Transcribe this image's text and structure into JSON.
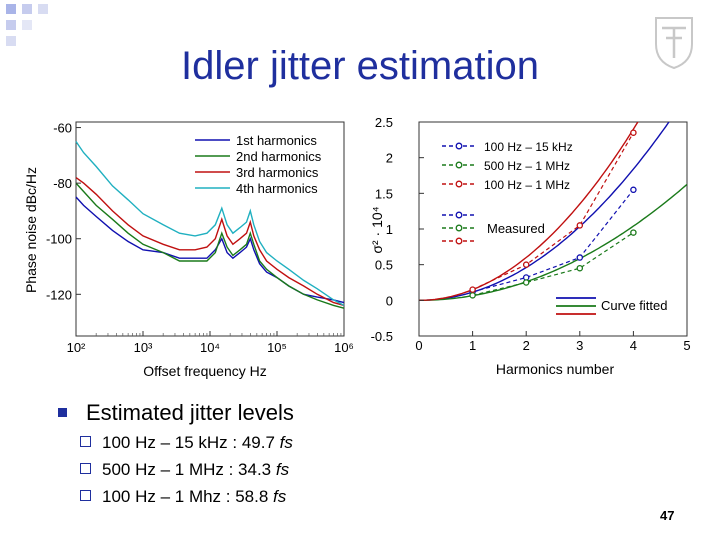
{
  "slide": {
    "title": "Idler jitter estimation",
    "page_number": "47",
    "accent_color": "#1f2f9e",
    "bullet": {
      "text": "Estimated jitter levels",
      "items": [
        {
          "label": "100 Hz – 15 kHz : 49.7 ",
          "value": "fs"
        },
        {
          "label": "500 Hz – 1 MHz  : 34.3 ",
          "value": "fs"
        },
        {
          "label": "100 Hz – 1 Mhz  : 58.8 ",
          "value": "fs"
        }
      ]
    }
  },
  "chart_data": [
    {
      "type": "line",
      "xlabel": "Offset frequency  Hz",
      "ylabel": "Phase noise  dBc/Hz",
      "x_scale": "log",
      "xlim": [
        100,
        1000000
      ],
      "ylim": [
        -135,
        -58
      ],
      "x_ticks": [
        "10²",
        "10³",
        "10⁴",
        "10⁵",
        "10⁶"
      ],
      "y_ticks": [
        "-60",
        "-80",
        "-100",
        "-120"
      ],
      "legend": [
        "1st harmonics",
        "2nd harmonics",
        "3rd harmonics",
        "4th harmonics"
      ],
      "legend_position": "top-right",
      "x": [
        100,
        130,
        200,
        350,
        600,
        1000,
        2000,
        3500,
        6000,
        9000,
        12000,
        15000,
        18000,
        22000,
        28000,
        35000,
        40000,
        45000,
        55000,
        70000,
        100000,
        150000,
        250000,
        400000,
        700000,
        1000000
      ],
      "series": [
        {
          "name": "1st harmonics",
          "color": "#1010b0",
          "values": [
            -85,
            -88,
            -92,
            -97,
            -101,
            -104,
            -105,
            -107,
            -107,
            -107,
            -104,
            -100,
            -105,
            -107,
            -105,
            -103,
            -100,
            -104,
            -109,
            -112,
            -114,
            -117,
            -120,
            -121,
            -122,
            -123
          ]
        },
        {
          "name": "2nd harmonics",
          "color": "#1a7a1a",
          "values": [
            -80,
            -83,
            -88,
            -93,
            -98,
            -102,
            -105,
            -108,
            -108,
            -108,
            -105,
            -98,
            -103,
            -106,
            -104,
            -102,
            -98,
            -102,
            -108,
            -111,
            -114,
            -117,
            -120,
            -122,
            -124,
            -125
          ]
        },
        {
          "name": "3rd harmonics",
          "color": "#c01010",
          "values": [
            -78,
            -80,
            -84,
            -90,
            -95,
            -99,
            -102,
            -104,
            -104,
            -103,
            -100,
            -93,
            -99,
            -102,
            -100,
            -98,
            -94,
            -99,
            -104,
            -108,
            -111,
            -114,
            -117,
            -120,
            -123,
            -124
          ]
        },
        {
          "name": "4th harmonics",
          "color": "#20b0c0",
          "values": [
            -65,
            -69,
            -74,
            -81,
            -86,
            -91,
            -95,
            -98,
            -99,
            -98,
            -95,
            -89,
            -95,
            -98,
            -96,
            -94,
            -90,
            -95,
            -101,
            -105,
            -108,
            -111,
            -115,
            -118,
            -122,
            -124
          ]
        }
      ]
    },
    {
      "type": "line",
      "xlabel": "Harmonics number",
      "ylabel": "σ² · 10⁴",
      "xlim": [
        0,
        5
      ],
      "ylim": [
        -0.5,
        2.5
      ],
      "x_ticks": [
        "0",
        "1",
        "2",
        "3",
        "4",
        "5"
      ],
      "y_ticks": [
        "-0.5",
        "0",
        "0.5",
        "1",
        "1.5",
        "2",
        "2.5"
      ],
      "legend": [
        "100 Hz – 15 kHz",
        "500 Hz – 1 MHz",
        "100 Hz – 1 MHz"
      ],
      "legend_measured_label": "Measured",
      "legend_fitted_label": "Curve fitted",
      "x": [
        1,
        2,
        3,
        4
      ],
      "measured": [
        {
          "name": "100 Hz – 15 kHz",
          "color": "#1010b0",
          "values": [
            0.12,
            0.32,
            0.6,
            1.55
          ]
        },
        {
          "name": "500 Hz – 1 MHz",
          "color": "#1a7a1a",
          "values": [
            0.07,
            0.25,
            0.45,
            0.95
          ]
        },
        {
          "name": "100 Hz – 1 MHz",
          "color": "#c01010",
          "values": [
            0.15,
            0.5,
            1.05,
            2.35
          ]
        }
      ],
      "fitted": [
        {
          "color": "#1010b0",
          "coef": 0.115,
          "power": 2
        },
        {
          "color": "#1a7a1a",
          "coef": 0.065,
          "power": 2
        },
        {
          "color": "#c01010",
          "coef": 0.15,
          "power": 2
        }
      ]
    }
  ]
}
